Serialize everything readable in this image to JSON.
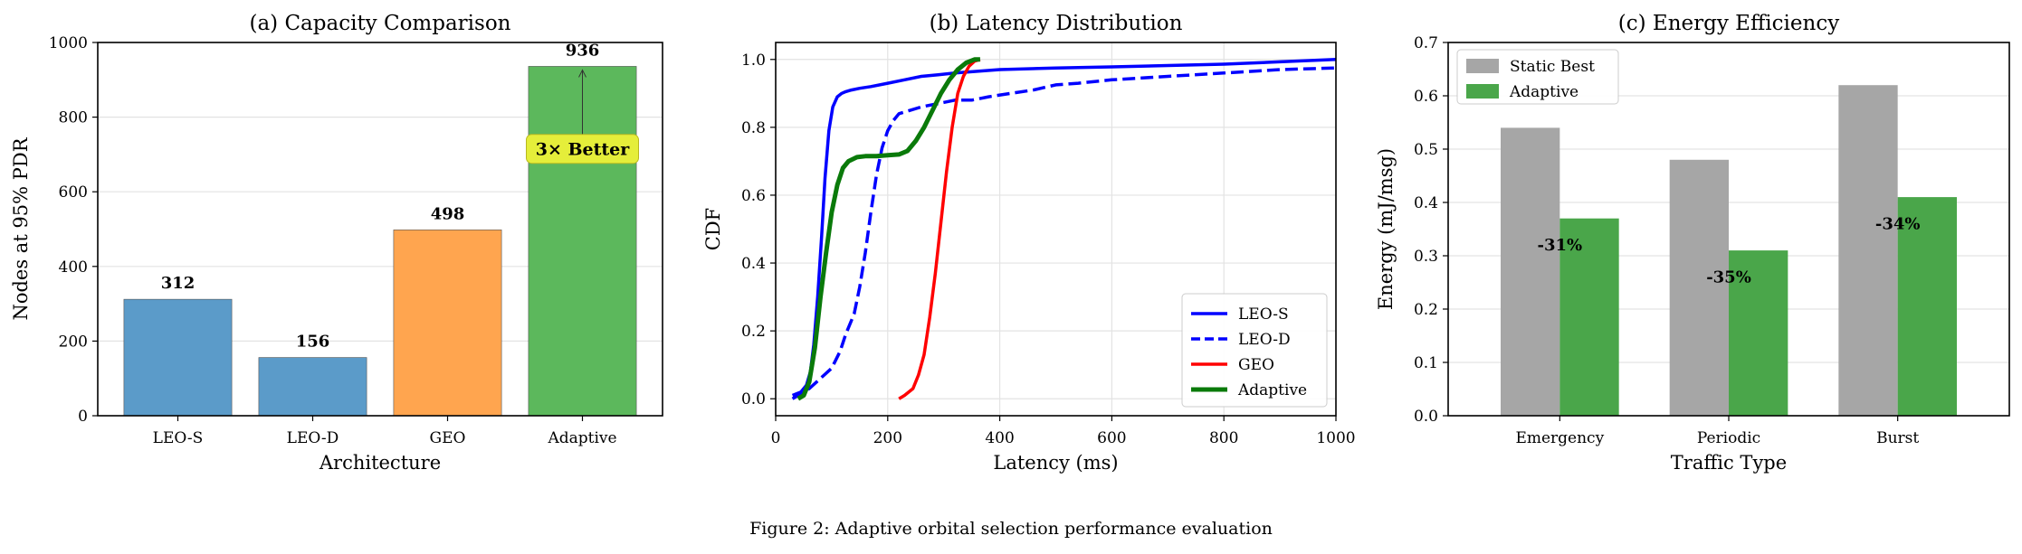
{
  "figure_caption": "Figure 2: Adaptive orbital selection performance evaluation",
  "chart_data": [
    {
      "type": "bar",
      "title": "(a) Capacity Comparison",
      "xlabel": "Architecture",
      "ylabel": "Nodes at 95% PDR",
      "ylim": [
        0,
        1000
      ],
      "yticks": [
        0,
        200,
        400,
        600,
        800,
        1000
      ],
      "grid": true,
      "categories": [
        "LEO-S",
        "LEO-D",
        "GEO",
        "Adaptive"
      ],
      "values": [
        312,
        156,
        498,
        936
      ],
      "value_labels": [
        "312",
        "156",
        "498",
        "936"
      ],
      "colors": [
        "#5b9bc9",
        "#5b9bc9",
        "#ffa54f",
        "#5cb85c"
      ],
      "annotation": {
        "text": "3× Better",
        "target_category": "Adaptive",
        "text_y": 715,
        "arrow_to_y": 936,
        "box_color": "#e5ee3a"
      }
    },
    {
      "type": "line",
      "title": "(b) Latency Distribution",
      "xlabel": "Latency (ms)",
      "ylabel": "CDF",
      "xlim": [
        0,
        1000
      ],
      "ylim": [
        -0.05,
        1.05
      ],
      "xticks": [
        0,
        200,
        400,
        600,
        800,
        1000
      ],
      "yticks": [
        0.0,
        0.2,
        0.4,
        0.6,
        0.8,
        1.0
      ],
      "ytick_labels": [
        "0.0",
        "0.2",
        "0.4",
        "0.6",
        "0.8",
        "1.0"
      ],
      "grid": true,
      "legend": "lower-right",
      "series": [
        {
          "name": "LEO-S",
          "color": "#0000ff",
          "dash": "solid",
          "width": 3.5,
          "x": [
            30,
            45,
            55,
            62,
            68,
            75,
            82,
            88,
            95,
            102,
            110,
            118,
            125,
            135,
            150,
            170,
            200,
            230,
            260,
            290,
            320,
            360,
            400,
            500,
            600,
            700,
            800,
            900,
            1000
          ],
          "y": [
            0.01,
            0.02,
            0.04,
            0.08,
            0.16,
            0.3,
            0.48,
            0.65,
            0.79,
            0.86,
            0.89,
            0.9,
            0.905,
            0.91,
            0.915,
            0.92,
            0.93,
            0.94,
            0.95,
            0.955,
            0.96,
            0.965,
            0.97,
            0.975,
            0.978,
            0.982,
            0.986,
            0.993,
            1.0
          ]
        },
        {
          "name": "LEO-D",
          "color": "#0000ff",
          "dash": "dashed",
          "width": 3.5,
          "x": [
            30,
            60,
            80,
            100,
            115,
            125,
            140,
            150,
            160,
            170,
            180,
            190,
            200,
            210,
            220,
            240,
            260,
            290,
            320,
            350,
            380,
            420,
            460,
            500,
            540,
            600,
            700,
            800,
            900,
            1000
          ],
          "y": [
            0.0,
            0.03,
            0.06,
            0.09,
            0.14,
            0.19,
            0.25,
            0.33,
            0.43,
            0.55,
            0.66,
            0.74,
            0.79,
            0.82,
            0.84,
            0.85,
            0.86,
            0.87,
            0.88,
            0.88,
            0.89,
            0.9,
            0.91,
            0.925,
            0.93,
            0.94,
            0.95,
            0.96,
            0.97,
            0.975
          ]
        },
        {
          "name": "GEO",
          "color": "#ff0000",
          "dash": "solid",
          "width": 3.5,
          "x": [
            220,
            230,
            245,
            255,
            265,
            275,
            285,
            295,
            305,
            315,
            325,
            335,
            345,
            355,
            365
          ],
          "y": [
            0.0,
            0.01,
            0.03,
            0.07,
            0.13,
            0.24,
            0.37,
            0.52,
            0.67,
            0.8,
            0.9,
            0.95,
            0.98,
            0.995,
            1.0
          ]
        },
        {
          "name": "Adaptive",
          "color": "#0a7a0a",
          "dash": "solid",
          "width": 5,
          "x": [
            40,
            50,
            60,
            70,
            80,
            90,
            100,
            110,
            120,
            130,
            145,
            160,
            180,
            200,
            220,
            235,
            250,
            265,
            280,
            295,
            310,
            325,
            340,
            355,
            365
          ],
          "y": [
            0.0,
            0.01,
            0.05,
            0.15,
            0.3,
            0.43,
            0.55,
            0.63,
            0.68,
            0.7,
            0.712,
            0.715,
            0.715,
            0.718,
            0.72,
            0.73,
            0.76,
            0.8,
            0.85,
            0.9,
            0.94,
            0.97,
            0.99,
            1.0,
            1.0
          ]
        }
      ]
    },
    {
      "type": "bar",
      "title": "(c) Energy Efficiency",
      "xlabel": "Traffic Type",
      "ylabel": "Energy (mJ/msg)",
      "ylim": [
        0,
        0.7
      ],
      "yticks": [
        0.0,
        0.1,
        0.2,
        0.3,
        0.4,
        0.5,
        0.6,
        0.7
      ],
      "ytick_labels": [
        "0.0",
        "0.1",
        "0.2",
        "0.3",
        "0.4",
        "0.5",
        "0.6",
        "0.7"
      ],
      "grid": true,
      "legend": "top-left",
      "categories": [
        "Emergency",
        "Periodic",
        "Burst"
      ],
      "series": [
        {
          "name": "Static Best",
          "color": "#a6a6a6",
          "values": [
            0.54,
            0.48,
            0.62
          ]
        },
        {
          "name": "Adaptive",
          "color": "#4aa64a",
          "values": [
            0.37,
            0.31,
            0.41
          ]
        }
      ],
      "reduction_labels": [
        "-31%",
        "-35%",
        "-34%"
      ],
      "reduction_label_y": [
        0.32,
        0.26,
        0.36
      ]
    }
  ]
}
